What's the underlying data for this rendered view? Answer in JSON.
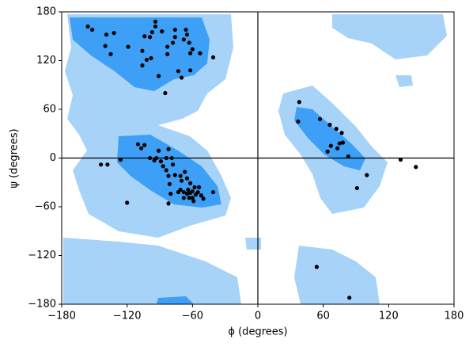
{
  "chart_data": {
    "type": "scatter",
    "x_label": "ϕ (degrees)",
    "y_label": "ψ (degrees)",
    "xlim": [
      -180,
      180
    ],
    "ylim": [
      -180,
      180
    ],
    "xticks": [
      {
        "value": -180,
        "label": "−180"
      },
      {
        "value": -120,
        "label": "−120"
      },
      {
        "value": -60,
        "label": "−60"
      },
      0,
      60,
      120,
      180
    ],
    "yticks": [
      {
        "value": -180,
        "label": "−180"
      },
      {
        "value": -120,
        "label": "−120"
      },
      {
        "value": -60,
        "label": "−60"
      },
      0,
      60,
      120,
      180
    ],
    "color": "#000000",
    "x": [
      -152,
      -156,
      -132,
      -139,
      -135,
      -140,
      -119,
      -104,
      -94,
      -94,
      -97,
      -88,
      -76,
      -66,
      -65,
      -76,
      -68,
      -78,
      -83,
      -63,
      -60,
      -62,
      -53,
      -41,
      -99,
      -106,
      -102,
      -98,
      -106,
      -91,
      -83,
      -73,
      -62,
      -70,
      -85,
      -138,
      -144,
      -126,
      -120,
      -110,
      -104,
      -107,
      -91,
      -82,
      -93,
      -99,
      -95,
      -89,
      -84,
      -79,
      -78,
      -87,
      -84,
      -82,
      -81,
      -76,
      -80,
      -82,
      -71,
      -70,
      -67,
      -65,
      -62,
      -64,
      -71,
      -73,
      -68,
      -65,
      -62,
      -60,
      -58,
      -54,
      -57,
      -55,
      -60,
      -63,
      -52,
      -59,
      -50,
      -41,
      -68,
      38,
      37,
      57,
      66,
      72,
      77,
      75,
      78,
      67,
      73,
      64,
      83,
      131,
      145,
      100,
      91,
      54,
      84
    ],
    "y": [
      158,
      162,
      154,
      152,
      128,
      138,
      137,
      150,
      168,
      162,
      155,
      156,
      158,
      158,
      152,
      149,
      146,
      142,
      137,
      142,
      134,
      129,
      129,
      124,
      149,
      132,
      121,
      123,
      114,
      101,
      128,
      107,
      108,
      99,
      80,
      -8,
      -8,
      -2,
      -55,
      17,
      16,
      12,
      9,
      11,
      0,
      0,
      -3,
      -4,
      0,
      0,
      -8,
      -10,
      -15,
      -22,
      -32,
      -21,
      -44,
      -56,
      -22,
      -28,
      -17,
      -25,
      -31,
      -39,
      -39,
      -42,
      -42,
      -44,
      -43,
      -41,
      -36,
      -36,
      -45,
      -42,
      -49,
      -49,
      -46,
      -53,
      -50,
      -42,
      -49,
      69,
      45,
      48,
      41,
      36,
      31,
      18,
      19,
      15,
      12,
      8,
      2,
      -2,
      -11,
      -21,
      -37,
      -134,
      -172
    ]
  }
}
